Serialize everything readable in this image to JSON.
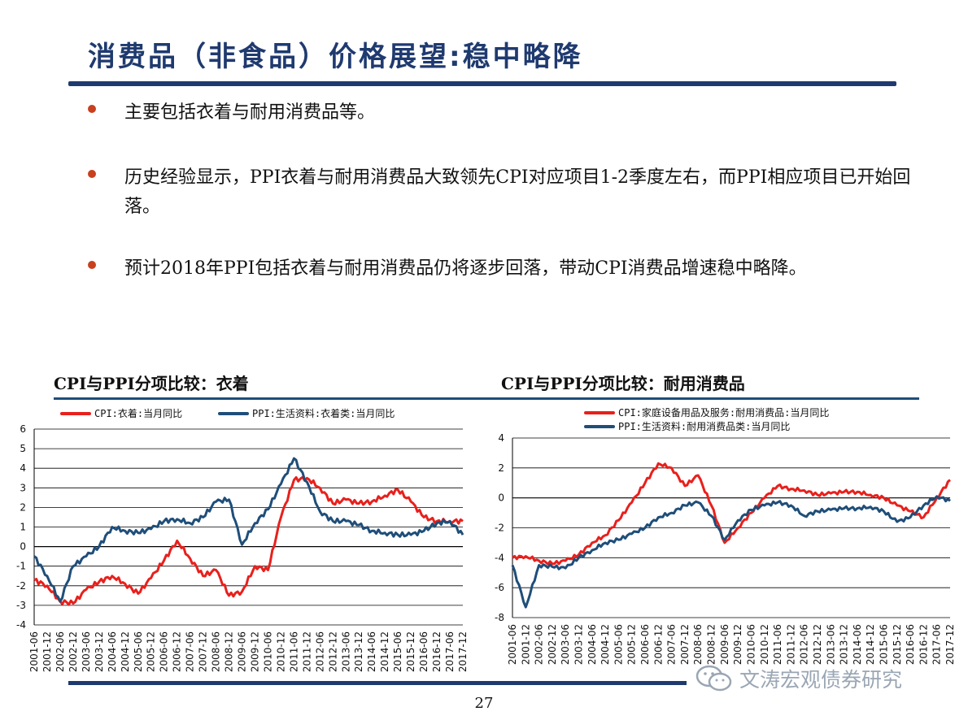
{
  "title": "消费品（非食品）价格展望:稳中略降",
  "bullets": [
    {
      "text": "主要包括衣着与耐用消费品等。"
    },
    {
      "text": "历史经验显示，PPI衣着与耐用消费品大致领先CPI对应项目1-2季度左右，而PPI相应项目已开始回落。"
    },
    {
      "text": "预计2018年PPI包括衣着与耐用消费品仍将逐步回落，带动CPI消费品增速稳中略降。"
    }
  ],
  "page_number": "27",
  "watermark": "文涛宏观债券研究",
  "colors": {
    "title": "#1f3a6f",
    "bullet": "#c8401e",
    "cpi": "#e8201c",
    "ppi": "#1f4e79"
  },
  "x_tick_labels": [
    "2001-06",
    "2001-12",
    "2002-06",
    "2002-12",
    "2003-06",
    "2003-12",
    "2004-06",
    "2004-12",
    "2005-06",
    "2005-12",
    "2006-06",
    "2006-12",
    "2007-06",
    "2007-12",
    "2008-06",
    "2008-12",
    "2009-06",
    "2009-12",
    "2010-06",
    "2010-12",
    "2011-06",
    "2011-12",
    "2012-06",
    "2012-12",
    "2013-06",
    "2013-12",
    "2014-06",
    "2014-12",
    "2015-06",
    "2015-12",
    "2016-06",
    "2016-12",
    "2017-06",
    "2017-12"
  ],
  "chart_data": [
    {
      "type": "line",
      "title": "CPI与PPI分项比较：衣着",
      "ylim": [
        -4,
        6
      ],
      "yticks": [
        6,
        5,
        4,
        3,
        2,
        1,
        0,
        -1,
        -2,
        -3,
        -4
      ],
      "grid": true,
      "legend_position": "top",
      "x": [
        "2001-06",
        "2001-12",
        "2002-06",
        "2002-12",
        "2003-06",
        "2003-12",
        "2004-06",
        "2004-12",
        "2005-06",
        "2005-12",
        "2006-06",
        "2006-12",
        "2007-06",
        "2007-12",
        "2008-06",
        "2008-12",
        "2009-06",
        "2009-12",
        "2010-06",
        "2010-12",
        "2011-06",
        "2011-12",
        "2012-06",
        "2012-12",
        "2013-06",
        "2013-12",
        "2014-06",
        "2014-12",
        "2015-06",
        "2015-12",
        "2016-06",
        "2016-12",
        "2017-06",
        "2017-12"
      ],
      "series": [
        {
          "name": "CPI:衣着:当月同比",
          "color": "#e8201c",
          "values": [
            -1.7,
            -2.0,
            -2.8,
            -2.9,
            -2.2,
            -1.8,
            -1.5,
            -1.9,
            -2.4,
            -1.6,
            -0.7,
            0.3,
            -0.6,
            -1.5,
            -1.2,
            -2.5,
            -2.3,
            -1.0,
            -1.2,
            1.5,
            3.4,
            3.5,
            3.0,
            2.2,
            2.4,
            2.2,
            2.3,
            2.6,
            2.9,
            2.3,
            1.5,
            1.3,
            1.3,
            1.3
          ]
        },
        {
          "name": "PPI:生活资料:衣着类:当月同比",
          "color": "#1f4e79",
          "values": [
            -0.5,
            -1.5,
            -2.8,
            -1.0,
            -0.5,
            0.0,
            1.0,
            0.8,
            0.7,
            0.9,
            1.3,
            1.4,
            1.2,
            1.5,
            2.3,
            2.4,
            0.1,
            1.2,
            1.9,
            3.2,
            4.5,
            3.3,
            1.8,
            1.3,
            1.3,
            1.1,
            0.8,
            0.7,
            0.6,
            0.6,
            0.8,
            1.2,
            1.3,
            0.6
          ]
        }
      ]
    },
    {
      "type": "line",
      "title": "CPI与PPI分项比较：耐用消费品",
      "ylim": [
        -8,
        4
      ],
      "yticks": [
        4,
        2,
        0,
        -2,
        -4,
        -6,
        -8
      ],
      "grid": true,
      "legend_position": "top",
      "x": [
        "2001-06",
        "2001-12",
        "2002-06",
        "2002-12",
        "2003-06",
        "2003-12",
        "2004-06",
        "2004-12",
        "2005-06",
        "2005-12",
        "2006-06",
        "2006-12",
        "2007-06",
        "2007-12",
        "2008-06",
        "2008-12",
        "2009-06",
        "2009-12",
        "2010-06",
        "2010-12",
        "2011-06",
        "2011-12",
        "2012-06",
        "2012-12",
        "2013-06",
        "2013-12",
        "2014-06",
        "2014-12",
        "2015-06",
        "2015-12",
        "2016-06",
        "2016-12",
        "2017-06",
        "2017-12"
      ],
      "series": [
        {
          "name": "CPI:家庭设备用品及服务:耐用消费品:当月同比",
          "color": "#e8201c",
          "values": [
            -4.0,
            -3.9,
            -4.2,
            -4.4,
            -4.2,
            -3.8,
            -3.0,
            -2.5,
            -1.5,
            -0.3,
            1.0,
            2.3,
            2.0,
            0.8,
            1.5,
            -0.5,
            -3.0,
            -2.0,
            -1.0,
            0.0,
            0.8,
            0.6,
            0.5,
            0.2,
            0.3,
            0.4,
            0.4,
            0.2,
            0.0,
            -0.5,
            -0.9,
            -1.3,
            0.0,
            1.2
          ]
        },
        {
          "name": "PPI:生活资料:耐用消费品类:当月同比",
          "color": "#1f4e79",
          "values": [
            -4.5,
            -7.3,
            -4.5,
            -4.6,
            -4.7,
            -4.0,
            -3.5,
            -3.0,
            -2.8,
            -2.4,
            -2.0,
            -1.3,
            -1.0,
            -0.5,
            -0.3,
            -1.2,
            -2.8,
            -1.5,
            -0.8,
            -0.5,
            -0.3,
            -0.5,
            -1.2,
            -0.9,
            -0.8,
            -0.7,
            -0.7,
            -0.6,
            -0.9,
            -1.6,
            -1.3,
            -0.5,
            0.1,
            -0.2
          ]
        }
      ]
    }
  ]
}
